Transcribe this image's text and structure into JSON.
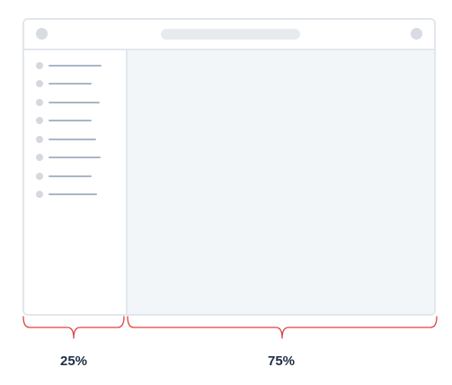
{
  "colors": {
    "frame_border": "#e2e7ed",
    "dot": "#d7dce2",
    "nav_line": "#a9b6c6",
    "content_bg": "#f3f6f9",
    "brace": "#e0403f",
    "label": "#1e2d45"
  },
  "sidebar": {
    "item_count": 8
  },
  "annotations": {
    "sidebar_share": "25%",
    "content_share": "75%"
  }
}
